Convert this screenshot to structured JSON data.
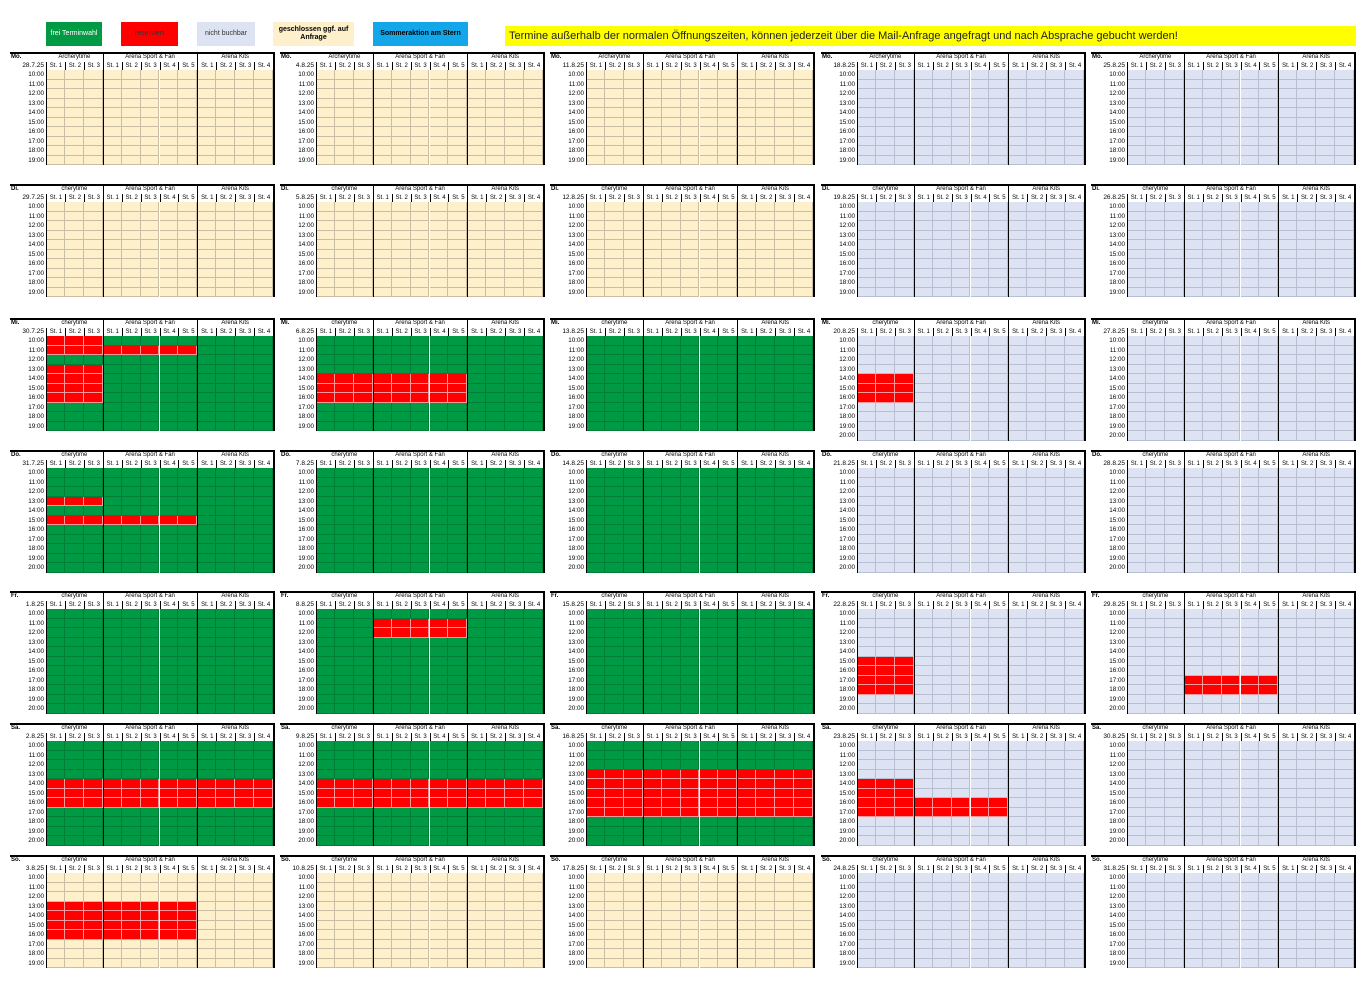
{
  "legend": {
    "items": [
      {
        "label": "frei Terminwahl",
        "color": "#009944",
        "text_color": "#ffffff",
        "bold": false
      },
      {
        "label": "reserviert",
        "color": "#ff0000",
        "text_color": "#333333",
        "bold": false
      },
      {
        "label": "nicht buchbar",
        "color": "#dde3f3",
        "text_color": "#333333",
        "bold": false
      },
      {
        "label": "geschlossen ggf. auf Anfrage",
        "color": "#fff0cc",
        "text_color": "#000000",
        "bold": true
      },
      {
        "label": "Sommeraktion am Stern",
        "color": "#13a6e8",
        "text_color": "#000000",
        "bold": true
      }
    ],
    "notice": "Termine außerhalb der normalen Öffnungszeiten, können jederzeit über die Mail-Anfrage angefragt und nach Absprache gebucht werden!",
    "notice_color": "#ffff00"
  },
  "groups": [
    {
      "name": "Archerytime",
      "stations": [
        "St. 1",
        "St. 2",
        "St. 3"
      ]
    },
    {
      "name": "Arena Sport & Fan",
      "stations": [
        "St. 1",
        "St. 2",
        "St. 3",
        "St. 4",
        "St. 5"
      ]
    },
    {
      "name": "Arena Kits",
      "stations": [
        "St. 1",
        "St. 2",
        "St. 3",
        "St. 4"
      ]
    }
  ],
  "group_labels_truncated": [
    "cherytime",
    "Arena Sport & Fan",
    "Arena Kits"
  ],
  "times_10_19": [
    "10:00",
    "11:00",
    "12:00",
    "13:00",
    "14:00",
    "15:00",
    "16:00",
    "17:00",
    "18:00",
    "19:00"
  ],
  "times_10_20": [
    "10:00",
    "11:00",
    "12:00",
    "13:00",
    "14:00",
    "15:00",
    "16:00",
    "17:00",
    "18:00",
    "19:00",
    "20:00"
  ],
  "week_dates": [
    [
      "28.7.25",
      "29.7.25",
      "30.7.25",
      "31.7.25",
      "1.8.25",
      "2.8.25",
      "3.8.25"
    ],
    [
      "4.8.25",
      "5.8.25",
      "6.8.25",
      "7.8.25",
      "8.8.25",
      "9.8.25",
      "10.8.25"
    ],
    [
      "11.8.25",
      "12.8.25",
      "13.8.25",
      "14.8.25",
      "15.8.25",
      "16.8.25",
      "17.8.25"
    ],
    [
      "18.8.25",
      "19.8.25",
      "20.8.25",
      "21.8.25",
      "22.8.25",
      "23.8.25",
      "24.8.25"
    ],
    [
      "25.8.25",
      "26.8.25",
      "27.8.25",
      "28.8.25",
      "29.8.25",
      "30.8.25",
      "31.8.25"
    ]
  ],
  "days": [
    {
      "label": "Mo.",
      "hours": "10_19",
      "statuses": [
        "closed",
        "closed",
        "closed",
        "na",
        "na"
      ]
    },
    {
      "label": "Di.",
      "hours": "10_19",
      "statuses": [
        "closed",
        "closed",
        "closed",
        "na",
        "na"
      ]
    },
    {
      "label": "Mi.",
      "hours": "10_19",
      "statuses": [
        "free",
        "free",
        "free",
        "na",
        "na"
      ],
      "hours_per_col": [
        "10_19",
        "10_19",
        "10_19",
        "10_20",
        "10_20"
      ]
    },
    {
      "label": "Do.",
      "hours": "10_20",
      "statuses": [
        "free",
        "free",
        "free",
        "na",
        "na"
      ]
    },
    {
      "label": "Fr.",
      "hours": "10_20",
      "statuses": [
        "free",
        "free",
        "free",
        "na",
        "na"
      ]
    },
    {
      "label": "Sa.",
      "hours": "10_20",
      "statuses": [
        "free",
        "free",
        "free",
        "na",
        "na"
      ]
    },
    {
      "label": "So.",
      "hours": "10_19",
      "statuses": [
        "closed",
        "closed",
        "closed",
        "na",
        "na"
      ]
    }
  ],
  "reservations": [
    {
      "day": 2,
      "week": 0,
      "from": "10:00",
      "to": "10:00",
      "stations": [
        0,
        1,
        2
      ]
    },
    {
      "day": 2,
      "week": 0,
      "from": "11:00",
      "to": "11:00",
      "stations": [
        0,
        1,
        2,
        3,
        4,
        5,
        6,
        7
      ]
    },
    {
      "day": 2,
      "week": 0,
      "from": "13:00",
      "to": "16:00",
      "stations": [
        0,
        1,
        2
      ]
    },
    {
      "day": 2,
      "week": 1,
      "from": "14:00",
      "to": "16:00",
      "stations": [
        0,
        1,
        2,
        3,
        4,
        5,
        6,
        7
      ]
    },
    {
      "day": 2,
      "week": 3,
      "from": "14:00",
      "to": "16:00",
      "stations": [
        0,
        1,
        2
      ]
    },
    {
      "day": 3,
      "week": 0,
      "from": "13:00",
      "to": "13:00",
      "stations": [
        0,
        1,
        2
      ]
    },
    {
      "day": 3,
      "week": 0,
      "from": "15:00",
      "to": "15:00",
      "stations": [
        0,
        1,
        2,
        3,
        4,
        5,
        6,
        7
      ]
    },
    {
      "day": 4,
      "week": 1,
      "from": "11:00",
      "to": "12:00",
      "stations": [
        3,
        4,
        5,
        6,
        7
      ]
    },
    {
      "day": 4,
      "week": 3,
      "from": "15:00",
      "to": "18:00",
      "stations": [
        0,
        1,
        2
      ]
    },
    {
      "day": 4,
      "week": 4,
      "from": "17:00",
      "to": "18:00",
      "stations": [
        3,
        4,
        5,
        6,
        7
      ]
    },
    {
      "day": 5,
      "week": 0,
      "from": "14:00",
      "to": "16:00",
      "stations": [
        0,
        1,
        2,
        3,
        4,
        5,
        6,
        7,
        8,
        9,
        10,
        11
      ]
    },
    {
      "day": 5,
      "week": 1,
      "from": "14:00",
      "to": "16:00",
      "stations": [
        0,
        1,
        2,
        3,
        4,
        5,
        6,
        7,
        8,
        9,
        10,
        11
      ]
    },
    {
      "day": 5,
      "week": 2,
      "from": "13:00",
      "to": "17:00",
      "stations": [
        0,
        1,
        2,
        3,
        4,
        5,
        6,
        7,
        8,
        9,
        10,
        11
      ]
    },
    {
      "day": 5,
      "week": 3,
      "from": "14:00",
      "to": "17:00",
      "stations": [
        0,
        1,
        2
      ]
    },
    {
      "day": 5,
      "week": 3,
      "from": "16:00",
      "to": "17:00",
      "stations": [
        3,
        4,
        5,
        6,
        7
      ]
    },
    {
      "day": 6,
      "week": 0,
      "from": "13:00",
      "to": "16:00",
      "stations": [
        0,
        1,
        2,
        3,
        4,
        5,
        6,
        7
      ]
    }
  ]
}
